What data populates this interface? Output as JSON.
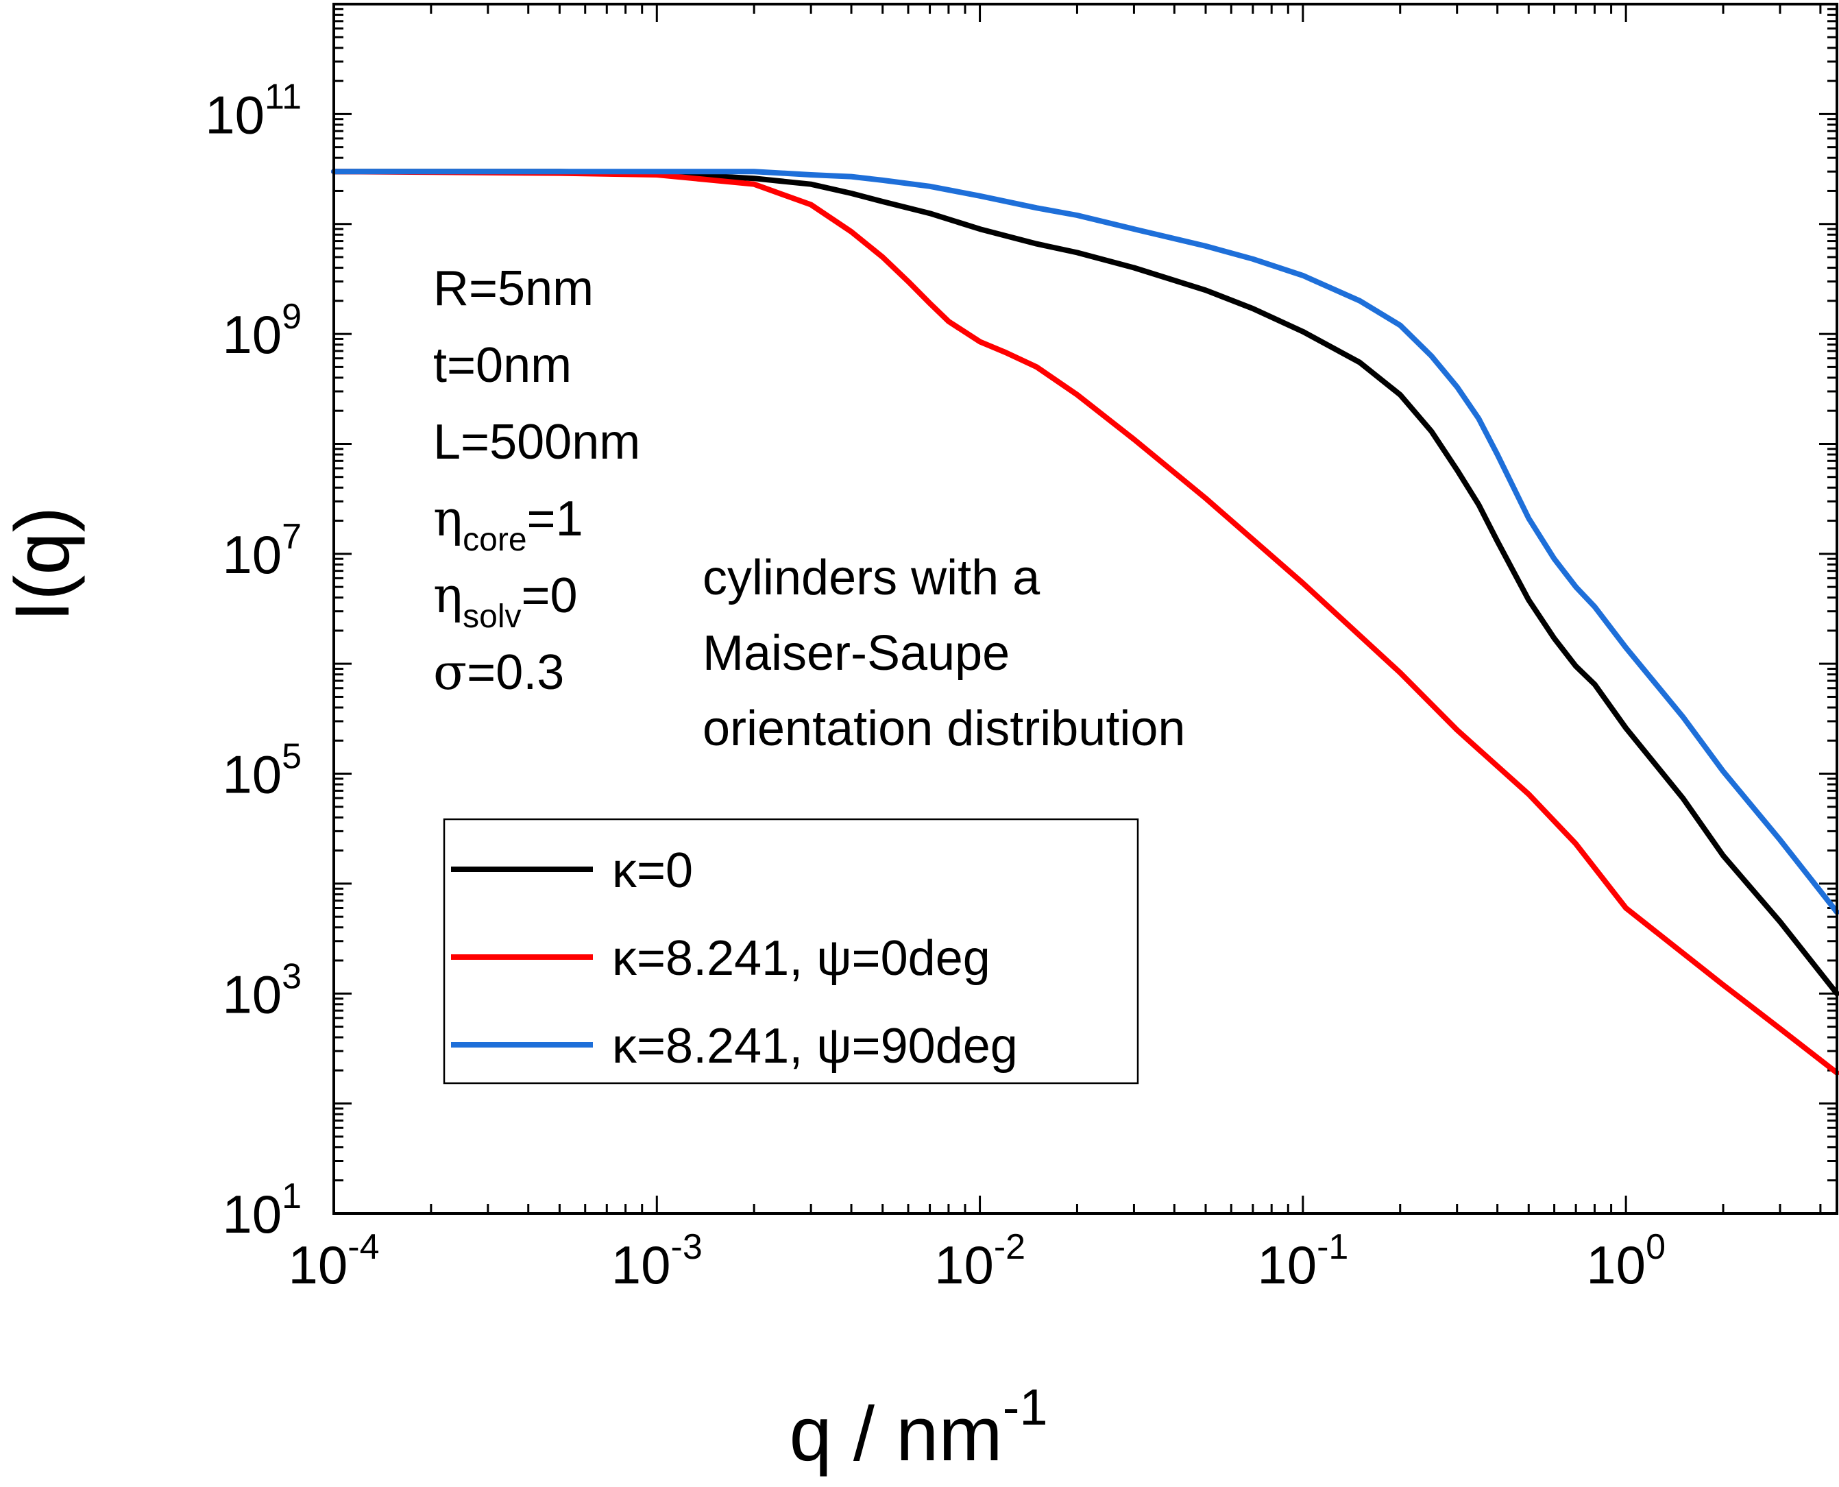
{
  "chart_data": {
    "type": "line",
    "xlabel": {
      "main": "q / nm",
      "sup": "-1"
    },
    "ylabel": "I(q)",
    "xscale": "log",
    "yscale": "log",
    "xlim": [
      0.0001,
      4.5
    ],
    "ylim": [
      10,
      1000000000000.0
    ],
    "grid": false,
    "legend_position": "lower-left",
    "x_ticks": [
      {
        "base": "10",
        "exp": "-4"
      },
      {
        "base": "10",
        "exp": "-3"
      },
      {
        "base": "10",
        "exp": "-2"
      },
      {
        "base": "10",
        "exp": "-1"
      },
      {
        "base": "10",
        "exp": "0"
      }
    ],
    "y_ticks": [
      {
        "base": "10",
        "exp": "1"
      },
      {
        "base": "10",
        "exp": "3"
      },
      {
        "base": "10",
        "exp": "5"
      },
      {
        "base": "10",
        "exp": "7"
      },
      {
        "base": "10",
        "exp": "9"
      },
      {
        "base": "10",
        "exp": "11"
      }
    ],
    "parameters": [
      {
        "sym": "",
        "sub": "",
        "rest": "R=5nm"
      },
      {
        "sym": "",
        "sub": "",
        "rest": "t=0nm"
      },
      {
        "sym": "",
        "sub": "",
        "rest": "L=500nm"
      },
      {
        "sym": "η",
        "sub": "core",
        "rest": "=1"
      },
      {
        "sym": "η",
        "sub": "solv",
        "rest": "=0"
      },
      {
        "sym": "σ",
        "sub": "",
        "rest": "=0.3"
      }
    ],
    "annotation": [
      "cylinders with a",
      "Maiser-Saupe",
      "orientation distribution"
    ],
    "series": [
      {
        "name": "κ=0",
        "color": "#000000",
        "x": [
          0.0001,
          0.0005,
          0.001,
          0.002,
          0.003,
          0.004,
          0.005,
          0.007,
          0.01,
          0.015,
          0.02,
          0.03,
          0.05,
          0.07,
          0.1,
          0.15,
          0.2,
          0.25,
          0.3,
          0.35,
          0.4,
          0.5,
          0.6,
          0.7,
          0.8,
          1.0,
          1.5,
          2.0,
          3.0,
          4.5
        ],
        "y": [
          30000000000.0,
          30000000000.0,
          29000000000.0,
          26000000000.0,
          23000000000.0,
          19000000000.0,
          16000000000.0,
          12500000000.0,
          9000000000.0,
          6600000000.0,
          5500000000.0,
          4000000000.0,
          2500000000.0,
          1700000000.0,
          1050000000.0,
          550000000.0,
          280000000.0,
          130000000.0,
          58000000.0,
          28000000.0,
          13000000.0,
          3800000.0,
          1700000.0,
          950000.0,
          650000.0,
          260000.0,
          60000.0,
          18000.0,
          4500,
          1000
        ]
      },
      {
        "name": "κ=8.241, ψ=0deg",
        "color": "#ff0000",
        "x": [
          0.0001,
          0.0005,
          0.001,
          0.002,
          0.003,
          0.004,
          0.005,
          0.006,
          0.007,
          0.008,
          0.01,
          0.012,
          0.015,
          0.02,
          0.03,
          0.05,
          0.1,
          0.2,
          0.3,
          0.5,
          0.7,
          1.0,
          2.0,
          3.0,
          4.5
        ],
        "y": [
          30000000000.0,
          29000000000.0,
          28000000000.0,
          23000000000.0,
          15000000000.0,
          8500000000.0,
          5000000000.0,
          3000000000.0,
          1900000000.0,
          1300000000.0,
          850000000.0,
          680000000.0,
          500000000.0,
          280000000.0,
          110000000.0,
          32000000.0,
          5400000.0,
          830000.0,
          250000.0,
          65000.0,
          23000.0,
          6000.0,
          1200.0,
          480,
          190
        ]
      },
      {
        "name": "κ=8.241, ψ=90deg",
        "color": "#1e6fd9",
        "x": [
          0.0001,
          0.0005,
          0.001,
          0.002,
          0.003,
          0.004,
          0.005,
          0.007,
          0.01,
          0.015,
          0.02,
          0.03,
          0.05,
          0.07,
          0.1,
          0.15,
          0.2,
          0.25,
          0.3,
          0.35,
          0.4,
          0.5,
          0.6,
          0.7,
          0.8,
          1.0,
          1.5,
          2.0,
          3.0,
          4.5
        ],
        "y": [
          30000000000.0,
          30000000000.0,
          30000000000.0,
          30000000000.0,
          28000000000.0,
          27000000000.0,
          25000000000.0,
          22000000000.0,
          18000000000.0,
          14000000000.0,
          12000000000.0,
          9000000000.0,
          6300000000.0,
          4800000000.0,
          3400000000.0,
          2000000000.0,
          1200000000.0,
          630000000.0,
          330000000.0,
          170000000.0,
          80000000.0,
          21000000.0,
          9000000.0,
          5000000.0,
          3300000.0,
          1400000.0,
          330000.0,
          105000.0,
          25000.0,
          5500.0
        ]
      }
    ]
  }
}
